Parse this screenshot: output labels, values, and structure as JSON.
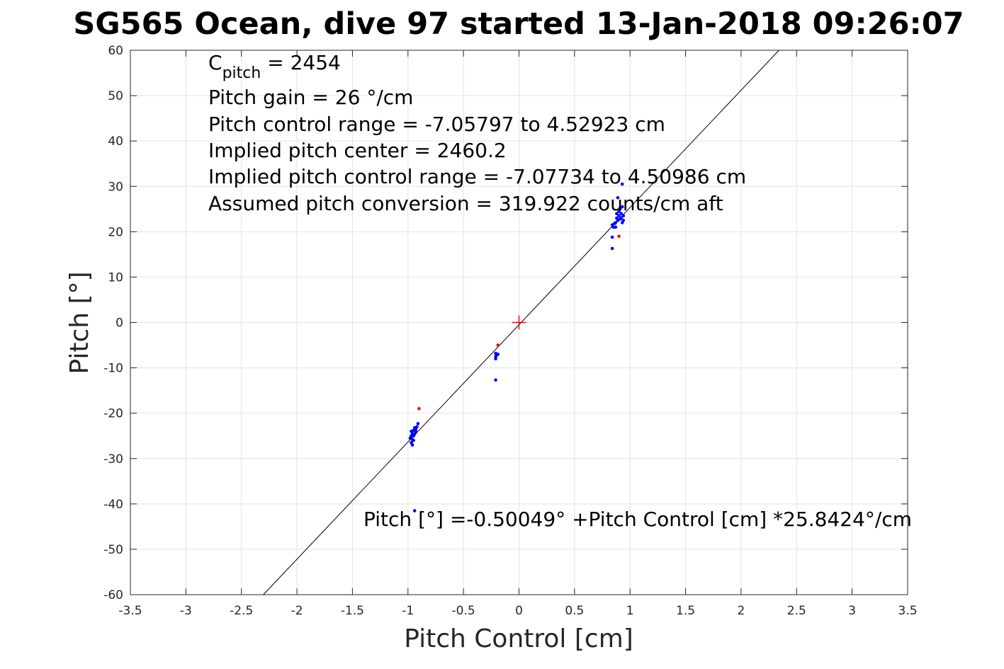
{
  "chart_data": {
    "type": "scatter",
    "title": "SG565 Ocean, dive 97 started 13-Jan-2018 09:26:07",
    "xlabel": "Pitch Control [cm]",
    "ylabel": "Pitch [°]",
    "xlim": [
      -3.5,
      3.5
    ],
    "ylim": [
      -60,
      60
    ],
    "xticks": [
      -3.5,
      -3,
      -2.5,
      -2,
      -1.5,
      -1,
      -0.5,
      0,
      0.5,
      1,
      1.5,
      2,
      2.5,
      3,
      3.5
    ],
    "xtick_labels": [
      "-3.5",
      "-3",
      "-2.5",
      "-2",
      "-1.5",
      "-1",
      "-0.5",
      "0",
      "0.5",
      "1",
      "1.5",
      "2",
      "2.5",
      "3",
      "3.5"
    ],
    "yticks": [
      -60,
      -50,
      -40,
      -30,
      -20,
      -10,
      0,
      10,
      20,
      30,
      40,
      50,
      60
    ],
    "ytick_labels": [
      "-60",
      "-50",
      "-40",
      "-30",
      "-20",
      "-10",
      "0",
      "10",
      "20",
      "30",
      "40",
      "50",
      "60"
    ],
    "grid": true,
    "annotations": {
      "c_pitch_base": "C",
      "c_pitch_sub": "pitch",
      "c_pitch_value": " = 2454",
      "lines": [
        "Pitch gain = 26 °/cm",
        "Pitch control range = -7.05797 to 4.52923 cm",
        "Implied pitch center = 2460.2",
        "Implied pitch control range = -7.07734 to 4.50986 cm",
        "Assumed pitch conversion = 319.922 counts/cm aft"
      ],
      "fit_equation": "Pitch [°] =-0.50049° +Pitch Control [cm] *25.8424°/cm"
    },
    "fit_line": {
      "intercept": -0.50049,
      "slope": 25.8424,
      "color": "#000000"
    },
    "center_marker": {
      "x": 0,
      "y": 0,
      "color": "#ff0000",
      "shape": "plus"
    },
    "series": [
      {
        "color": "#0000ff",
        "points": [
          [
            -0.97,
            -25.0
          ],
          [
            -0.97,
            -26.5
          ],
          [
            -0.98,
            -25.5
          ],
          [
            -0.96,
            -24.5
          ],
          [
            -0.96,
            -27.0
          ],
          [
            -0.95,
            -26.0
          ],
          [
            -0.95,
            -23.8
          ],
          [
            -0.94,
            -24.6
          ],
          [
            -0.94,
            -23.2
          ],
          [
            -0.93,
            -23.5
          ],
          [
            -0.92,
            -23.0
          ],
          [
            -0.91,
            -22.3
          ],
          [
            -0.97,
            -24.0
          ],
          [
            -0.96,
            -25.8
          ],
          [
            -0.95,
            -25.0
          ],
          [
            -0.93,
            -24.0
          ],
          [
            -0.94,
            -41.5
          ],
          [
            -0.21,
            -6.8
          ],
          [
            -0.21,
            -7.5
          ],
          [
            -0.21,
            -8.0
          ],
          [
            -0.2,
            -7.2
          ],
          [
            -0.19,
            -7.0
          ],
          [
            -0.21,
            -12.7
          ],
          [
            0.84,
            21.5
          ],
          [
            0.85,
            21.0
          ],
          [
            0.86,
            21.8
          ],
          [
            0.87,
            22.0
          ],
          [
            0.87,
            21.0
          ],
          [
            0.88,
            23.0
          ],
          [
            0.88,
            24.0
          ],
          [
            0.89,
            22.5
          ],
          [
            0.9,
            23.5
          ],
          [
            0.9,
            24.5
          ],
          [
            0.91,
            22.8
          ],
          [
            0.91,
            25.0
          ],
          [
            0.92,
            23.0
          ],
          [
            0.92,
            24.0
          ],
          [
            0.93,
            22.0
          ],
          [
            0.93,
            25.5
          ],
          [
            0.94,
            23.5
          ],
          [
            0.94,
            22.5
          ],
          [
            0.89,
            27.5
          ],
          [
            0.93,
            30.5
          ],
          [
            0.84,
            18.8
          ],
          [
            0.84,
            16.3
          ]
        ]
      },
      {
        "color": "#ff0000",
        "points": [
          [
            -0.9,
            -19.0
          ],
          [
            -0.19,
            -5.0
          ],
          [
            0.9,
            19.0
          ]
        ]
      }
    ]
  }
}
